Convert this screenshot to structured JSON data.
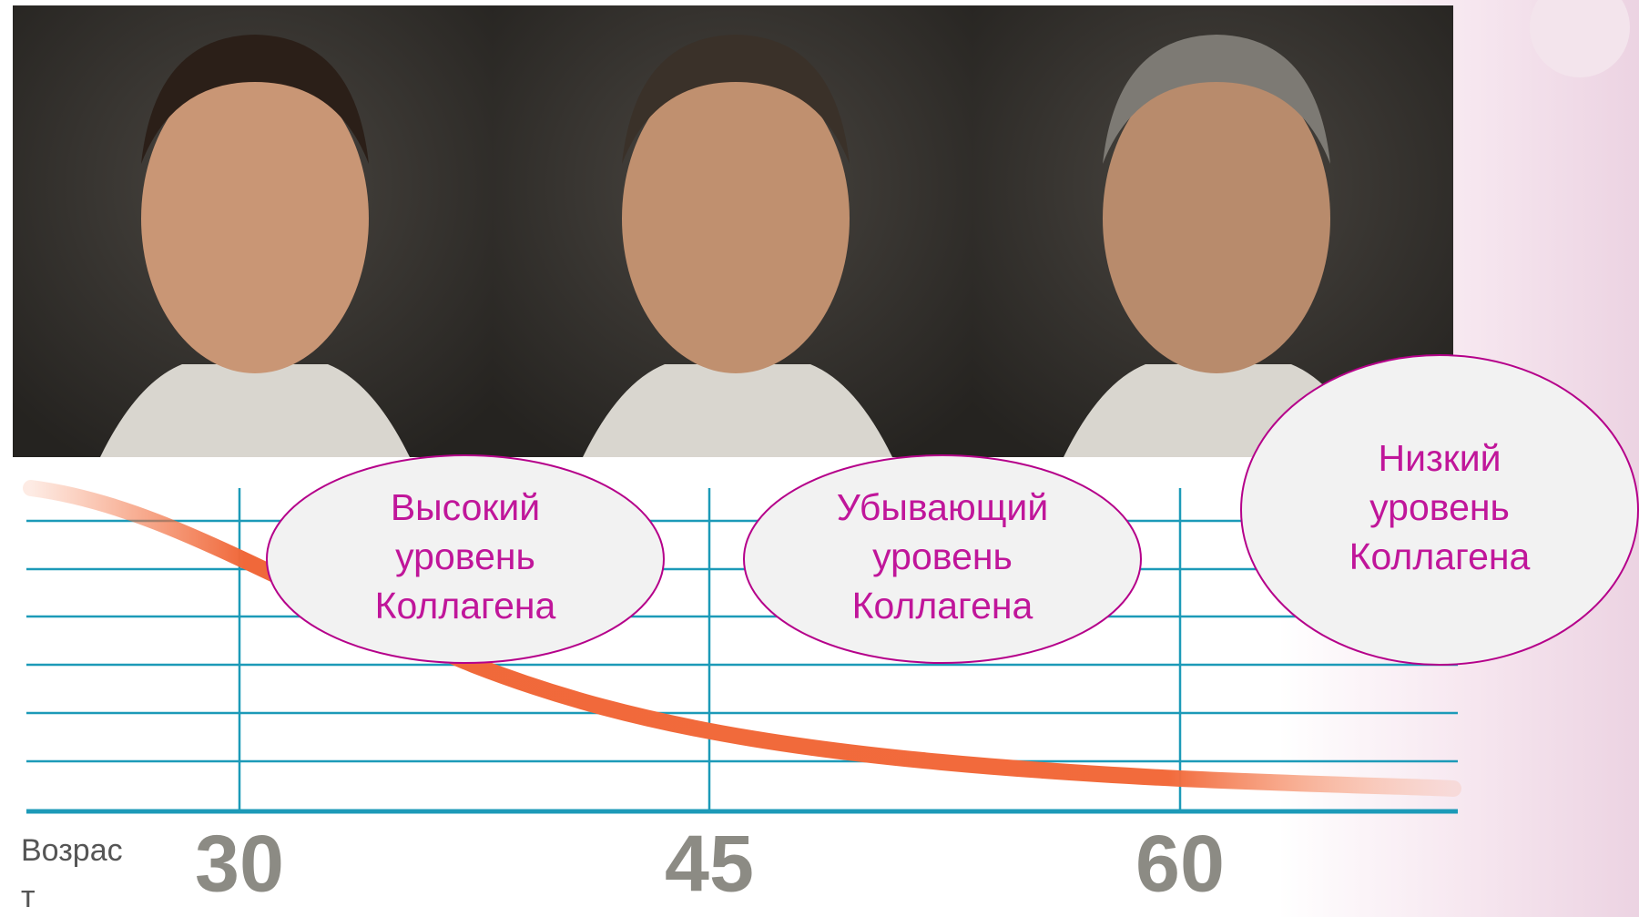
{
  "bubbles": [
    {
      "lines": [
        "Высокий",
        "уровень",
        "Коллагена"
      ]
    },
    {
      "lines": [
        "Убывающий",
        "уровень",
        "Коллагена"
      ]
    },
    {
      "lines": [
        "Низкий",
        "уровень",
        "Коллагена"
      ]
    }
  ],
  "axis": {
    "label_lines": [
      "Возрас",
      "т"
    ],
    "ticks": [
      30,
      45,
      60
    ]
  }
}
